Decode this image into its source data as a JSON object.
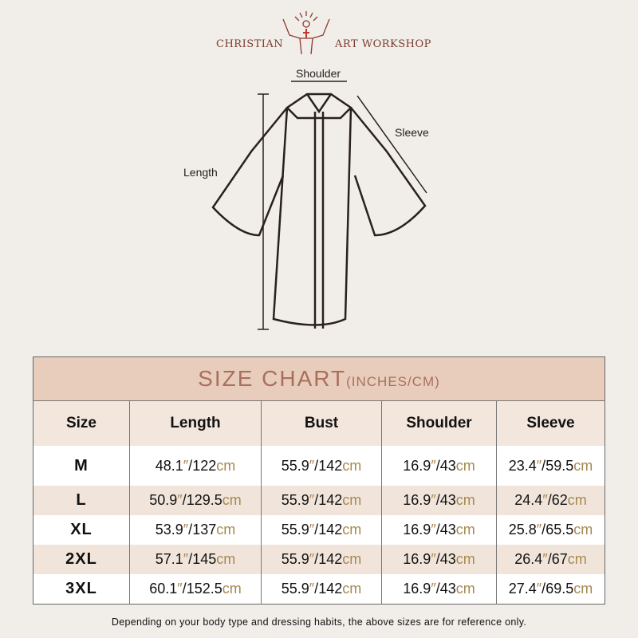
{
  "brand": {
    "left": "CHRISTIAN",
    "right": "ART WORKSHOP"
  },
  "diagram": {
    "shoulder": "Shoulder",
    "sleeve": "Sleeve",
    "length": "Length"
  },
  "table": {
    "title": "SIZE CHART",
    "title_unit": "(INCHES/CM)",
    "headers": [
      "Size",
      "Length",
      "Bust",
      "Shoulder",
      "Sleeve"
    ],
    "rows": [
      {
        "size": "M",
        "length": [
          "48.1",
          "122"
        ],
        "bust": [
          "55.9",
          "142"
        ],
        "shoulder": [
          "16.9",
          "43"
        ],
        "sleeve": [
          "23.4",
          "59.5"
        ]
      },
      {
        "size": "L",
        "length": [
          "50.9",
          "129.5"
        ],
        "bust": [
          "55.9",
          "142"
        ],
        "shoulder": [
          "16.9",
          "43"
        ],
        "sleeve": [
          "24.4",
          "62"
        ]
      },
      {
        "size": "XL",
        "length": [
          "53.9",
          "137"
        ],
        "bust": [
          "55.9",
          "142"
        ],
        "shoulder": [
          "16.9",
          "43"
        ],
        "sleeve": [
          "25.8",
          "65.5"
        ]
      },
      {
        "size": "2XL",
        "length": [
          "57.1",
          "145"
        ],
        "bust": [
          "55.9",
          "142"
        ],
        "shoulder": [
          "16.9",
          "43"
        ],
        "sleeve": [
          "26.4",
          "67"
        ]
      },
      {
        "size": "3XL",
        "length": [
          "60.1",
          "152.5"
        ],
        "bust": [
          "55.9",
          "142"
        ],
        "shoulder": [
          "16.9",
          "43"
        ],
        "sleeve": [
          "27.4",
          "69.5"
        ]
      }
    ]
  },
  "note": "Depending on your body type and dressing habits, the above sizes are for reference only.",
  "colors": {
    "header_band": "#e9cdbc",
    "title": "#a8705c",
    "accent": "#a6884f",
    "brand": "#7a3a2e"
  }
}
